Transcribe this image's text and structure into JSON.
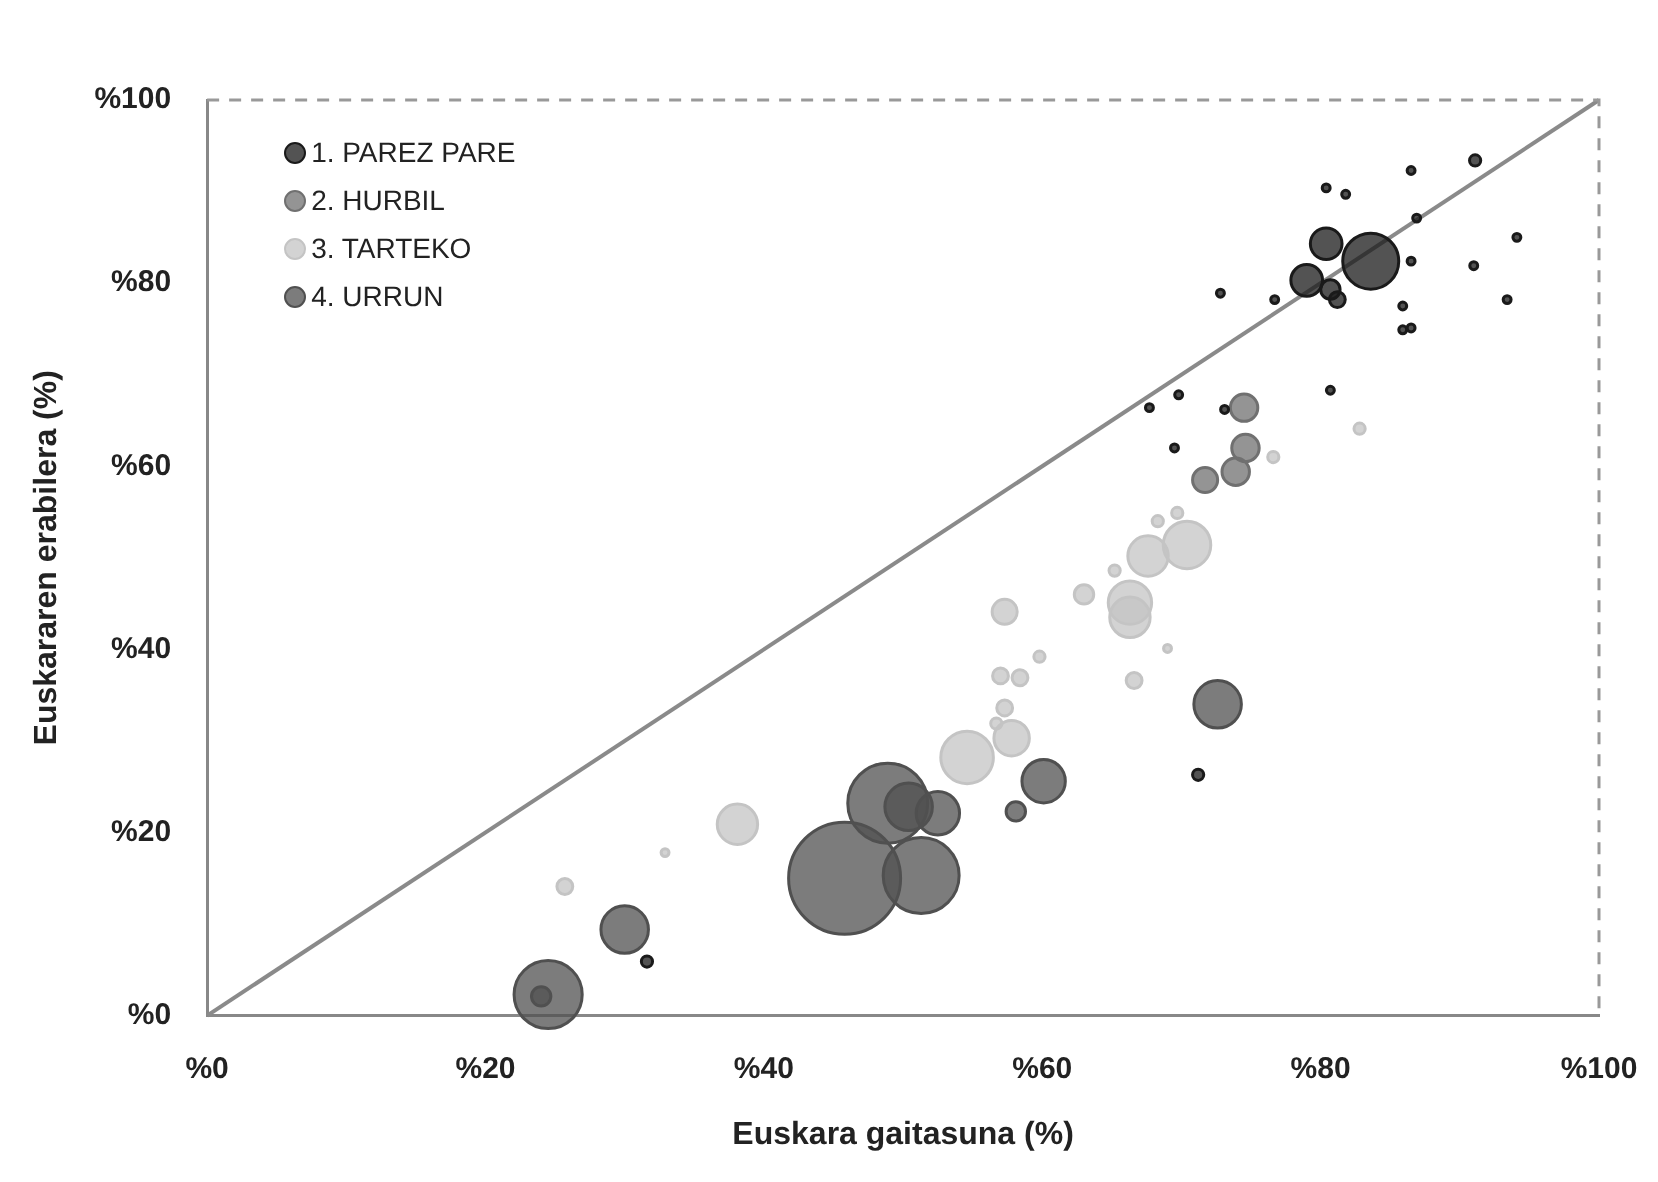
{
  "chart_data": {
    "type": "bubble",
    "xlabel": "Euskara gaitasuna (%)",
    "ylabel": "Euskararen erabilera (%)",
    "xlim": [
      0,
      100
    ],
    "ylim": [
      0,
      100
    ],
    "xticks": [
      {
        "value": 0,
        "label": "%0"
      },
      {
        "value": 20,
        "label": "%20"
      },
      {
        "value": 40,
        "label": "%40"
      },
      {
        "value": 60,
        "label": "%60"
      },
      {
        "value": 80,
        "label": "%80"
      },
      {
        "value": 100,
        "label": "%100"
      }
    ],
    "yticks": [
      {
        "value": 0,
        "label": "%0"
      },
      {
        "value": 20,
        "label": "%20"
      },
      {
        "value": 40,
        "label": "%40"
      },
      {
        "value": 60,
        "label": "%60"
      },
      {
        "value": 80,
        "label": "%80"
      },
      {
        "value": 100,
        "label": "%100"
      }
    ],
    "grid": false,
    "legend": "top left",
    "series": [
      {
        "name": "1. PAREZ PARE",
        "color": "#1a1a1a",
        "x": [
          83.6,
          80.4,
          79.0,
          80.7,
          81.2,
          91.1,
          86.5,
          86.9,
          94.1,
          80.4,
          81.8,
          72.8,
          76.7,
          86.5,
          91.0,
          93.4,
          85.9,
          85.9,
          86.5,
          80.7,
          67.7,
          69.8,
          69.5,
          73.1,
          71.2,
          31.6
        ],
        "values": [
          82.4,
          84.3,
          80.3,
          79.3,
          78.2,
          93.4,
          92.3,
          87.1,
          85.0,
          90.4,
          89.7,
          78.9,
          78.2,
          82.4,
          81.9,
          78.2,
          77.5,
          74.9,
          75.1,
          68.3,
          66.4,
          67.8,
          62.0,
          66.2,
          26.3,
          5.9
        ],
        "sizes": [
          0.25,
          0.08,
          0.08,
          0.03,
          0.02,
          0.01,
          0.005,
          0.005,
          0.005,
          0.005,
          0.005,
          0.005,
          0.005,
          0.005,
          0.005,
          0.005,
          0.005,
          0.005,
          0.005,
          0.005,
          0.005,
          0.005,
          0.005,
          0.005,
          0.01,
          0.01
        ]
      },
      {
        "name": "2. HURBIL",
        "color": "#707070",
        "x": [
          74.5,
          74.6,
          73.9,
          71.7
        ],
        "values": [
          66.4,
          62.0,
          59.4,
          58.5
        ],
        "sizes": [
          0.06,
          0.06,
          0.06,
          0.05
        ]
      },
      {
        "name": "3. TARTEKO",
        "color": "#c4c4c4",
        "x": [
          70.4,
          67.6,
          66.3,
          66.3,
          63.0,
          57.3,
          65.2,
          68.3,
          69.7,
          57.0,
          58.4,
          59.8,
          57.3,
          57.8,
          54.6,
          66.6,
          69.0,
          56.7,
          38.1,
          25.7,
          32.9,
          76.6,
          82.8
        ],
        "values": [
          51.4,
          50.2,
          45.1,
          43.5,
          46.0,
          44.1,
          48.6,
          54.0,
          54.9,
          37.1,
          36.9,
          39.2,
          33.6,
          30.3,
          28.2,
          36.6,
          40.1,
          31.9,
          20.9,
          14.1,
          17.8,
          61.0,
          64.1
        ],
        "sizes": [
          0.18,
          0.13,
          0.15,
          0.13,
          0.03,
          0.05,
          0.01,
          0.01,
          0.01,
          0.02,
          0.02,
          0.01,
          0.02,
          0.1,
          0.22,
          0.02,
          0.005,
          0.01,
          0.13,
          0.02,
          0.005,
          0.01,
          0.01
        ]
      },
      {
        "name": "4. URRUN",
        "color": "#505050",
        "x": [
          45.8,
          24.5,
          24.0,
          30.0,
          48.9,
          50.4,
          52.5,
          51.3,
          58.1,
          60.1,
          72.6
        ],
        "values": [
          15.0,
          2.3,
          2.1,
          9.4,
          23.2,
          22.8,
          22.1,
          15.3,
          22.3,
          25.6,
          34.0
        ],
        "sizes": [
          1,
          0.37,
          0.03,
          0.18,
          0.51,
          0.18,
          0.15,
          0.46,
          0.03,
          0.15,
          0.18
        ]
      },
      {
        "type": "line",
        "color": "#8a8a8a",
        "x": [
          0,
          100
        ],
        "values": [
          0,
          100
        ]
      }
    ]
  }
}
